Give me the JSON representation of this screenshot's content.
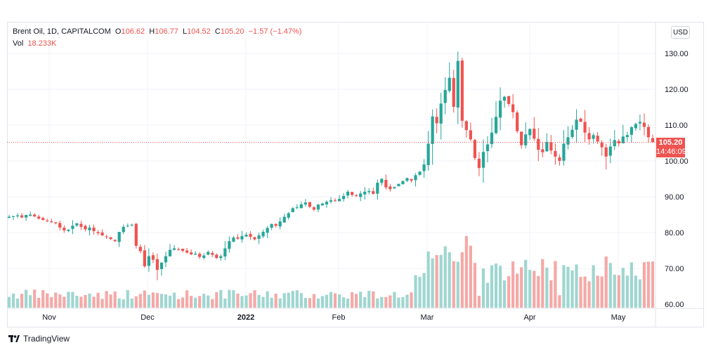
{
  "header": {
    "symbol": "Brent Oil, 1D, CAPITALCOM",
    "open_label": "O",
    "open": "106.62",
    "high_label": "H",
    "high": "106.77",
    "low_label": "L",
    "low": "104.52",
    "close_label": "C",
    "close": "105.20",
    "change": "−1.57 (−1.47%)",
    "vol_label": "Vol",
    "vol": "18.233K"
  },
  "currency_button": "USD",
  "price_tag": {
    "price": "105.20",
    "countdown": "14:46:09"
  },
  "footer": {
    "brand": "TradingView"
  },
  "colors": {
    "up": "#26a69a",
    "down": "#ef5350",
    "vol_up": "#9fd6d0",
    "vol_down": "#f4a9a7",
    "grid": "#f0f3fa",
    "text": "#131722"
  },
  "chart_data": {
    "type": "candlestick",
    "title": "Brent Oil, 1D, CAPITALCOM",
    "ylim": [
      60,
      130
    ],
    "y_ticks": [
      "130.00",
      "120.00",
      "110.00",
      "100.00",
      "90.00",
      "80.00",
      "70.00",
      "60.00"
    ],
    "x_tick_labels": [
      "Nov",
      "Dec",
      "2022",
      "Feb",
      "Mar",
      "Apr",
      "May"
    ],
    "last_close": 105.2,
    "grid": true,
    "volume_overlay": true,
    "approx_closes": [
      84.4,
      84.6,
      84.8,
      84.2,
      84.9,
      85.0,
      84.5,
      83.9,
      83.5,
      83.2,
      82.9,
      82.6,
      81.4,
      80.6,
      80.8,
      81.9,
      82.6,
      81.6,
      80.9,
      81.4,
      80.4,
      79.8,
      79.2,
      78.9,
      78.2,
      77.6,
      80.2,
      81.6,
      81.9,
      82.2,
      76.3,
      74.8,
      70.6,
      73.4,
      72.4,
      69.6,
      71.6,
      73.4,
      75.2,
      75.6,
      75.2,
      74.9,
      74.4,
      73.9,
      74.1,
      73.2,
      73.6,
      74.6,
      73.8,
      72.9,
      73.4,
      75.6,
      77.6,
      78.6,
      78.3,
      79.0,
      79.4,
      78.8,
      78.1,
      79.2,
      80.2,
      81.3,
      82.4,
      81.9,
      83.1,
      84.4,
      85.4,
      86.8,
      87.1,
      87.9,
      88.4,
      87.2,
      86.4,
      87.8,
      88.1,
      88.6,
      89.0,
      88.8,
      89.4,
      90.2,
      91.4,
      90.5,
      90.2,
      90.9,
      91.4,
      91.6,
      90.8,
      93.9,
      95.0,
      92.6,
      92.1,
      92.7,
      93.6,
      94.4,
      95.2,
      94.5,
      96.0,
      97.0,
      99.0,
      104.8,
      112.4,
      110.5,
      116.0,
      119.8,
      123.2,
      115.1,
      127.9,
      111.2,
      108.6,
      106.0,
      100.8,
      98.0,
      102.5,
      104.6,
      107.9,
      112.3,
      116.8,
      117.9,
      115.9,
      113.6,
      108.3,
      104.4,
      107.4,
      108.9,
      106.2,
      103.1,
      102.4,
      105.3,
      102.9,
      101.2,
      100.0,
      104.8,
      106.6,
      108.7,
      111.5,
      110.9,
      107.9,
      106.0,
      107.2,
      105.4,
      103.8,
      101.2,
      104.0,
      105.8,
      104.9,
      106.8,
      107.2,
      109.4,
      110.3,
      110.9,
      109.5,
      106.6,
      105.2
    ]
  }
}
